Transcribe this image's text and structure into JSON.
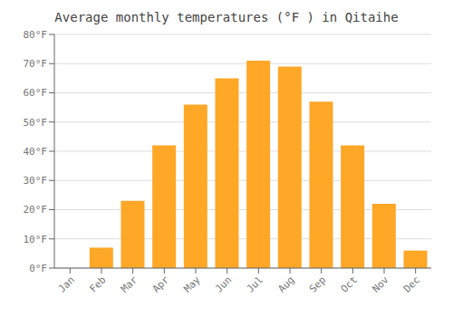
{
  "chart_data": {
    "type": "bar",
    "title": "Average monthly temperatures (°F ) in Qitaihe",
    "categories": [
      "Jan",
      "Feb",
      "Mar",
      "Apr",
      "May",
      "Jun",
      "Jul",
      "Aug",
      "Sep",
      "Oct",
      "Nov",
      "Dec"
    ],
    "values": [
      0.0,
      7.0,
      23.0,
      42.0,
      56.0,
      65.0,
      71.0,
      69.0,
      57.0,
      42.0,
      22.0,
      6.0
    ],
    "color": "#FFA726",
    "ylim": [
      0,
      80
    ],
    "yticks": [
      {
        "value": 0,
        "label": "0°F"
      },
      {
        "value": 10,
        "label": "10°F"
      },
      {
        "value": 20,
        "label": "20°F"
      },
      {
        "value": 30,
        "label": "30°F"
      },
      {
        "value": 40,
        "label": "40°F"
      },
      {
        "value": 50,
        "label": "50°F"
      },
      {
        "value": 60,
        "label": "60°F"
      },
      {
        "value": 70,
        "label": "70°F"
      },
      {
        "value": 80,
        "label": "80°F"
      }
    ],
    "grid": true
  }
}
